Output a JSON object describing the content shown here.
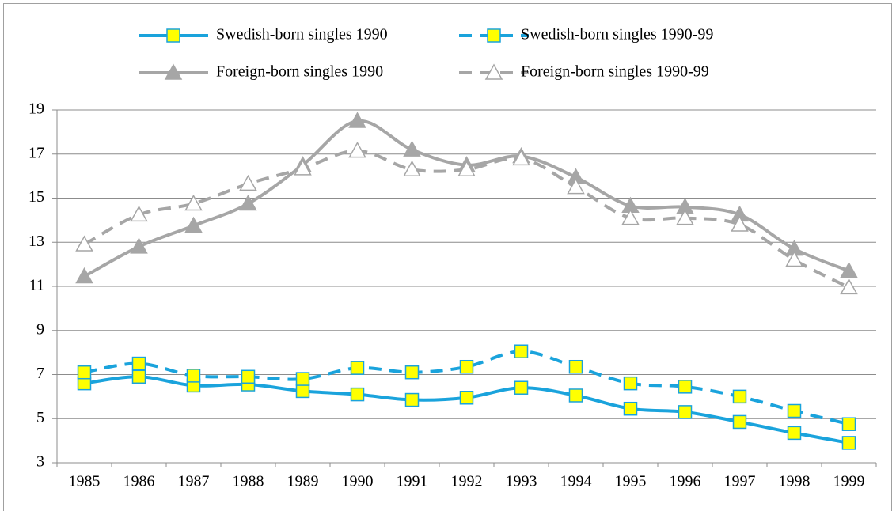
{
  "chart_data": {
    "type": "line",
    "categories": [
      "1985",
      "1986",
      "1987",
      "1988",
      "1989",
      "1990",
      "1991",
      "1992",
      "1993",
      "1994",
      "1995",
      "1996",
      "1997",
      "1998",
      "1999"
    ],
    "ylim": [
      3,
      19
    ],
    "yticks": [
      3,
      5,
      7,
      9,
      11,
      13,
      15,
      17,
      19
    ],
    "grid": true,
    "smooth": true,
    "legend": "top",
    "series": [
      {
        "name": "Swedish-born singles 1990",
        "color": "#1aa3dc",
        "line_style": "solid",
        "marker": "square",
        "marker_fill": "#ffff00",
        "values": [
          6.6,
          6.9,
          6.5,
          6.55,
          6.25,
          6.1,
          5.85,
          5.95,
          6.4,
          6.05,
          5.45,
          5.3,
          4.85,
          4.35,
          3.9
        ]
      },
      {
        "name": "Swedish-born singles 1990-99",
        "color": "#1aa3dc",
        "line_style": "dashed",
        "marker": "square",
        "marker_fill": "#ffff00",
        "values": [
          7.1,
          7.5,
          6.95,
          6.9,
          6.8,
          7.3,
          7.1,
          7.35,
          8.05,
          7.35,
          6.6,
          6.45,
          6.0,
          5.35,
          4.75
        ]
      },
      {
        "name": "Foreign-born singles 1990",
        "color": "#a6a6a6",
        "line_style": "solid",
        "marker": "triangle",
        "marker_fill": "#a6a6a6",
        "values": [
          11.45,
          12.8,
          13.75,
          14.75,
          16.5,
          18.5,
          17.2,
          16.5,
          16.9,
          15.95,
          14.65,
          14.6,
          14.25,
          12.7,
          11.7
        ]
      },
      {
        "name": "Foreign-born singles 1990-99",
        "color": "#a6a6a6",
        "line_style": "dashed",
        "marker": "triangle",
        "marker_fill": "#ffffff",
        "values": [
          12.9,
          14.25,
          14.75,
          15.65,
          16.35,
          17.15,
          16.3,
          16.3,
          16.8,
          15.5,
          14.1,
          14.1,
          13.8,
          12.2,
          10.95
        ]
      }
    ]
  }
}
